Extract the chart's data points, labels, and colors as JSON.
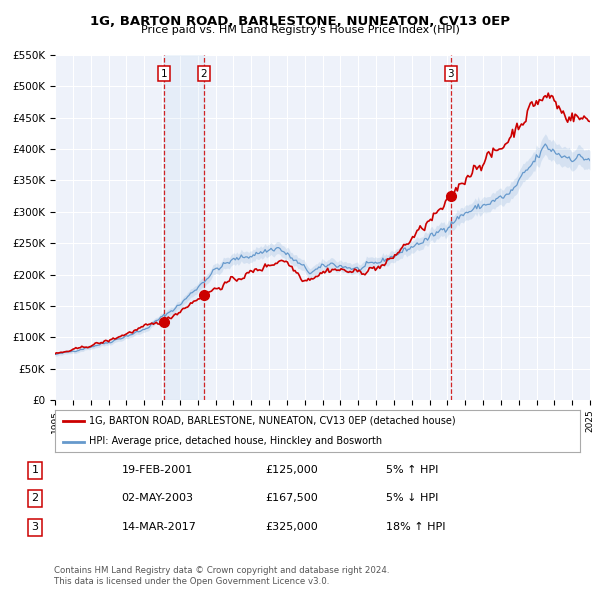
{
  "title": "1G, BARTON ROAD, BARLESTONE, NUNEATON, CV13 0EP",
  "subtitle": "Price paid vs. HM Land Registry's House Price Index (HPI)",
  "xlim": [
    1995,
    2025
  ],
  "ylim": [
    0,
    550000
  ],
  "yticks": [
    0,
    50000,
    100000,
    150000,
    200000,
    250000,
    300000,
    350000,
    400000,
    450000,
    500000,
    550000
  ],
  "ytick_labels": [
    "£0",
    "£50K",
    "£100K",
    "£150K",
    "£200K",
    "£250K",
    "£300K",
    "£350K",
    "£400K",
    "£450K",
    "£500K",
    "£550K"
  ],
  "sale_color": "#cc0000",
  "hpi_color": "#6699cc",
  "hpi_fill_alpha": 0.18,
  "background_color": "#eef2fa",
  "grid_color": "#ffffff",
  "sale_label": "1G, BARTON ROAD, BARLESTONE, NUNEATON, CV13 0EP (detached house)",
  "hpi_label": "HPI: Average price, detached house, Hinckley and Bosworth",
  "transactions": [
    {
      "num": 1,
      "date_label": "19-FEB-2001",
      "date_x": 2001.13,
      "price": 125000,
      "pct": "5%",
      "dir": "↑",
      "vs": "HPI"
    },
    {
      "num": 2,
      "date_label": "02-MAY-2003",
      "date_x": 2003.34,
      "price": 167500,
      "pct": "5%",
      "dir": "↓",
      "vs": "HPI"
    },
    {
      "num": 3,
      "date_label": "14-MAR-2017",
      "date_x": 2017.2,
      "price": 325000,
      "pct": "18%",
      "dir": "↑",
      "vs": "HPI"
    }
  ],
  "footer_line1": "Contains HM Land Registry data © Crown copyright and database right 2024.",
  "footer_line2": "This data is licensed under the Open Government Licence v3.0."
}
